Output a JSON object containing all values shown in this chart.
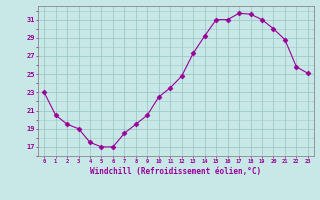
{
  "x": [
    0,
    1,
    2,
    3,
    4,
    5,
    6,
    7,
    8,
    9,
    10,
    11,
    12,
    13,
    14,
    15,
    16,
    17,
    18,
    19,
    20,
    21,
    22,
    23
  ],
  "y": [
    23,
    20.5,
    19.5,
    19,
    17.5,
    17,
    17,
    18.5,
    19.5,
    20.5,
    22.5,
    23.5,
    24.8,
    27.3,
    29.2,
    31,
    31,
    31.7,
    31.6,
    31,
    30,
    28.8,
    25.8,
    25.1
  ],
  "bg_color": "#c8e8e8",
  "line_color": "#990099",
  "marker_color": "#990099",
  "grid_color": "#a0c8c8",
  "xlabel": "Windchill (Refroidissement éolien,°C)",
  "xlabel_color": "#990099",
  "ylabel_ticks": [
    17,
    19,
    21,
    23,
    25,
    27,
    29,
    31
  ],
  "xtick_labels": [
    "0",
    "1",
    "2",
    "3",
    "4",
    "5",
    "6",
    "7",
    "8",
    "9",
    "10",
    "11",
    "12",
    "13",
    "14",
    "15",
    "16",
    "17",
    "18",
    "19",
    "20",
    "21",
    "22",
    "23"
  ],
  "ylim": [
    16.0,
    32.5
  ],
  "xlim": [
    -0.5,
    23.5
  ],
  "tick_color": "#990099",
  "spine_color": "#888888",
  "axis_bg": "#c8e8e8",
  "title_color": "#990099",
  "marker_size": 2.5,
  "line_width": 0.8
}
